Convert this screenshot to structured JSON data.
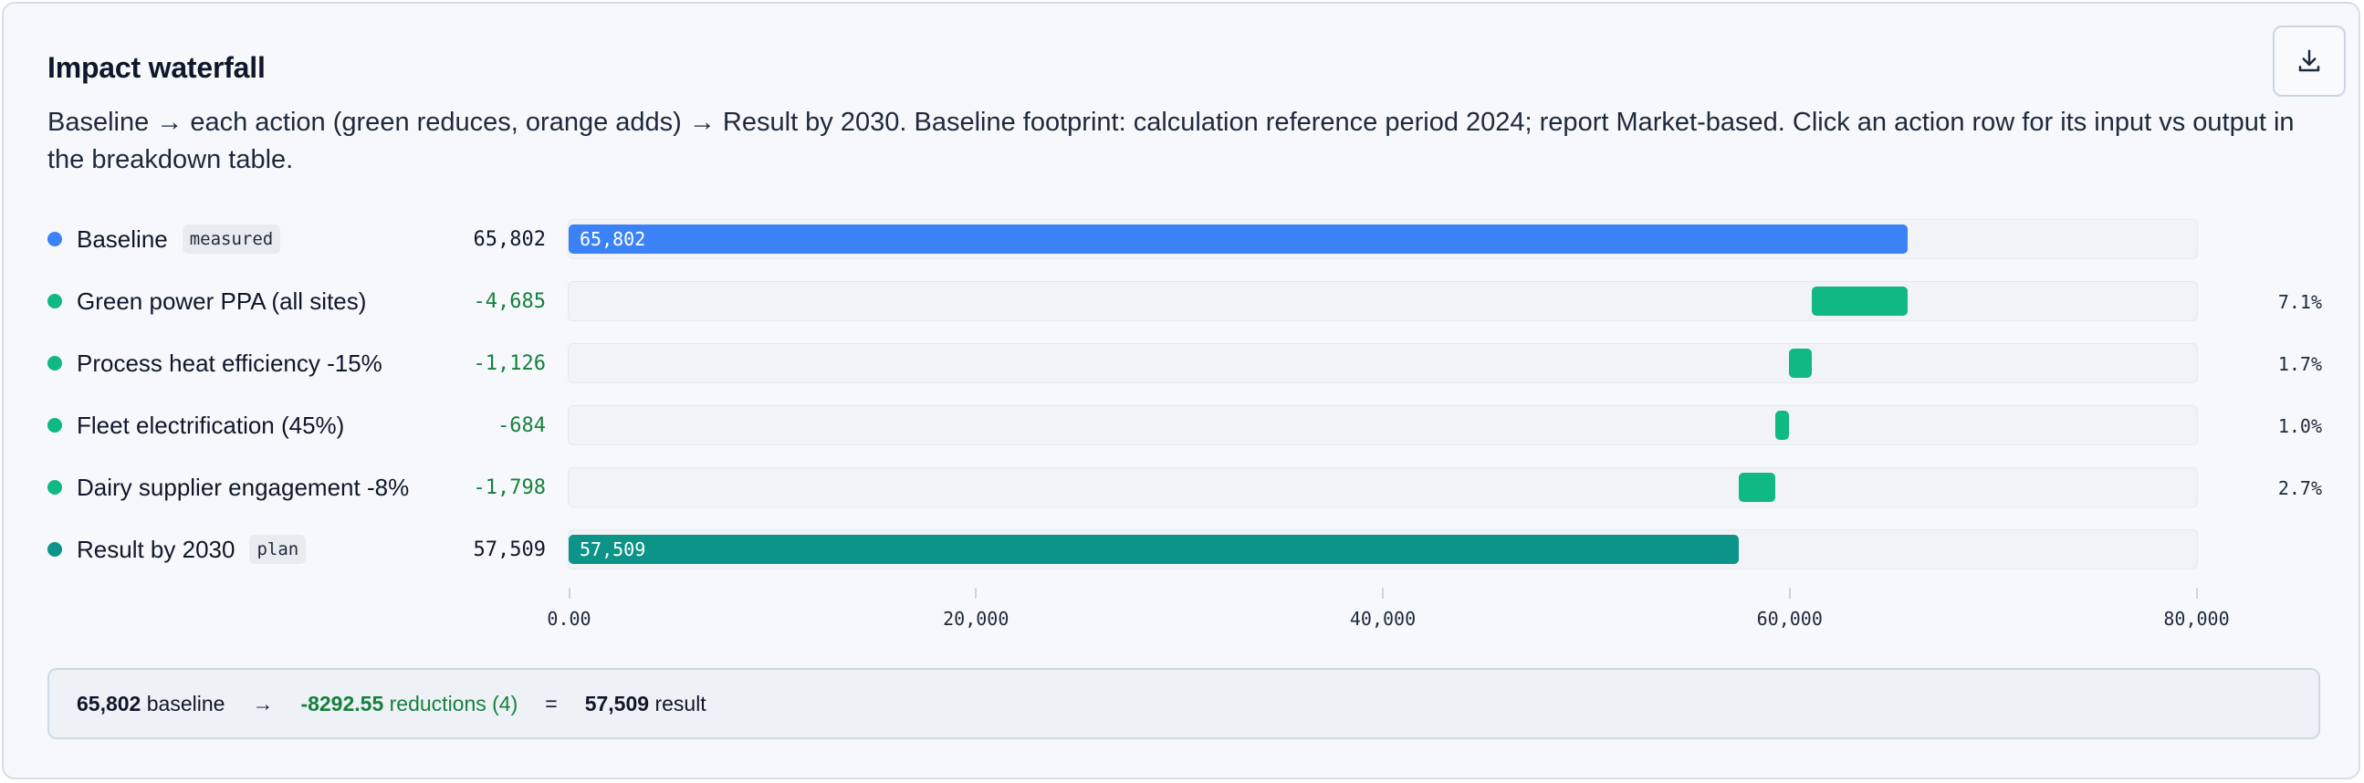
{
  "title": "Impact waterfall",
  "description": "Baseline → each action (green reduces, orange adds) → Result by 2030. Baseline footprint: calculation reference period 2024; report Market-based. Click an action row for its input vs output in the breakdown table.",
  "download_icon": "download-icon",
  "colors": {
    "baseline": "#3b82f6",
    "reduction": "#10b981",
    "addition": "#f97316",
    "result": "#0d9488"
  },
  "chart_data": {
    "type": "bar",
    "title": "Impact waterfall",
    "xlim": [
      0,
      80000
    ],
    "ticks": [
      "0.00",
      "20,000",
      "40,000",
      "60,000",
      "80,000"
    ],
    "tick_values": [
      0,
      20000,
      40000,
      60000,
      80000
    ],
    "grid": false,
    "rows": [
      {
        "label": "Baseline",
        "tag": "measured",
        "kind": "baseline",
        "start": 0,
        "end": 65802,
        "value": "65,802",
        "bar_label": "65,802",
        "pct": ""
      },
      {
        "label": "Green power PPA (all sites)",
        "tag": "",
        "kind": "reduction",
        "start": 61117,
        "end": 65802,
        "value": "-4,685",
        "bar_label": "",
        "pct": "7.1%"
      },
      {
        "label": "Process heat efficiency -15%",
        "tag": "",
        "kind": "reduction",
        "start": 59991,
        "end": 61117,
        "value": "-1,126",
        "bar_label": "",
        "pct": "1.7%"
      },
      {
        "label": "Fleet electrification (45%)",
        "tag": "",
        "kind": "reduction",
        "start": 59307,
        "end": 59991,
        "value": "-684",
        "bar_label": "",
        "pct": "1.0%"
      },
      {
        "label": "Dairy supplier engagement -8%",
        "tag": "",
        "kind": "reduction",
        "start": 57509,
        "end": 59307,
        "value": "-1,798",
        "bar_label": "",
        "pct": "2.7%"
      },
      {
        "label": "Result by 2030",
        "tag": "plan",
        "kind": "result",
        "start": 0,
        "end": 57509,
        "value": "57,509",
        "bar_label": "57,509",
        "pct": ""
      }
    ]
  },
  "summary": {
    "baseline_value": "65,802",
    "baseline_text": "baseline",
    "arrow": "→",
    "reductions_value": "-8292.55",
    "reductions_text": "reductions (4)",
    "equals": "=",
    "result_value": "57,509",
    "result_text": "result"
  }
}
